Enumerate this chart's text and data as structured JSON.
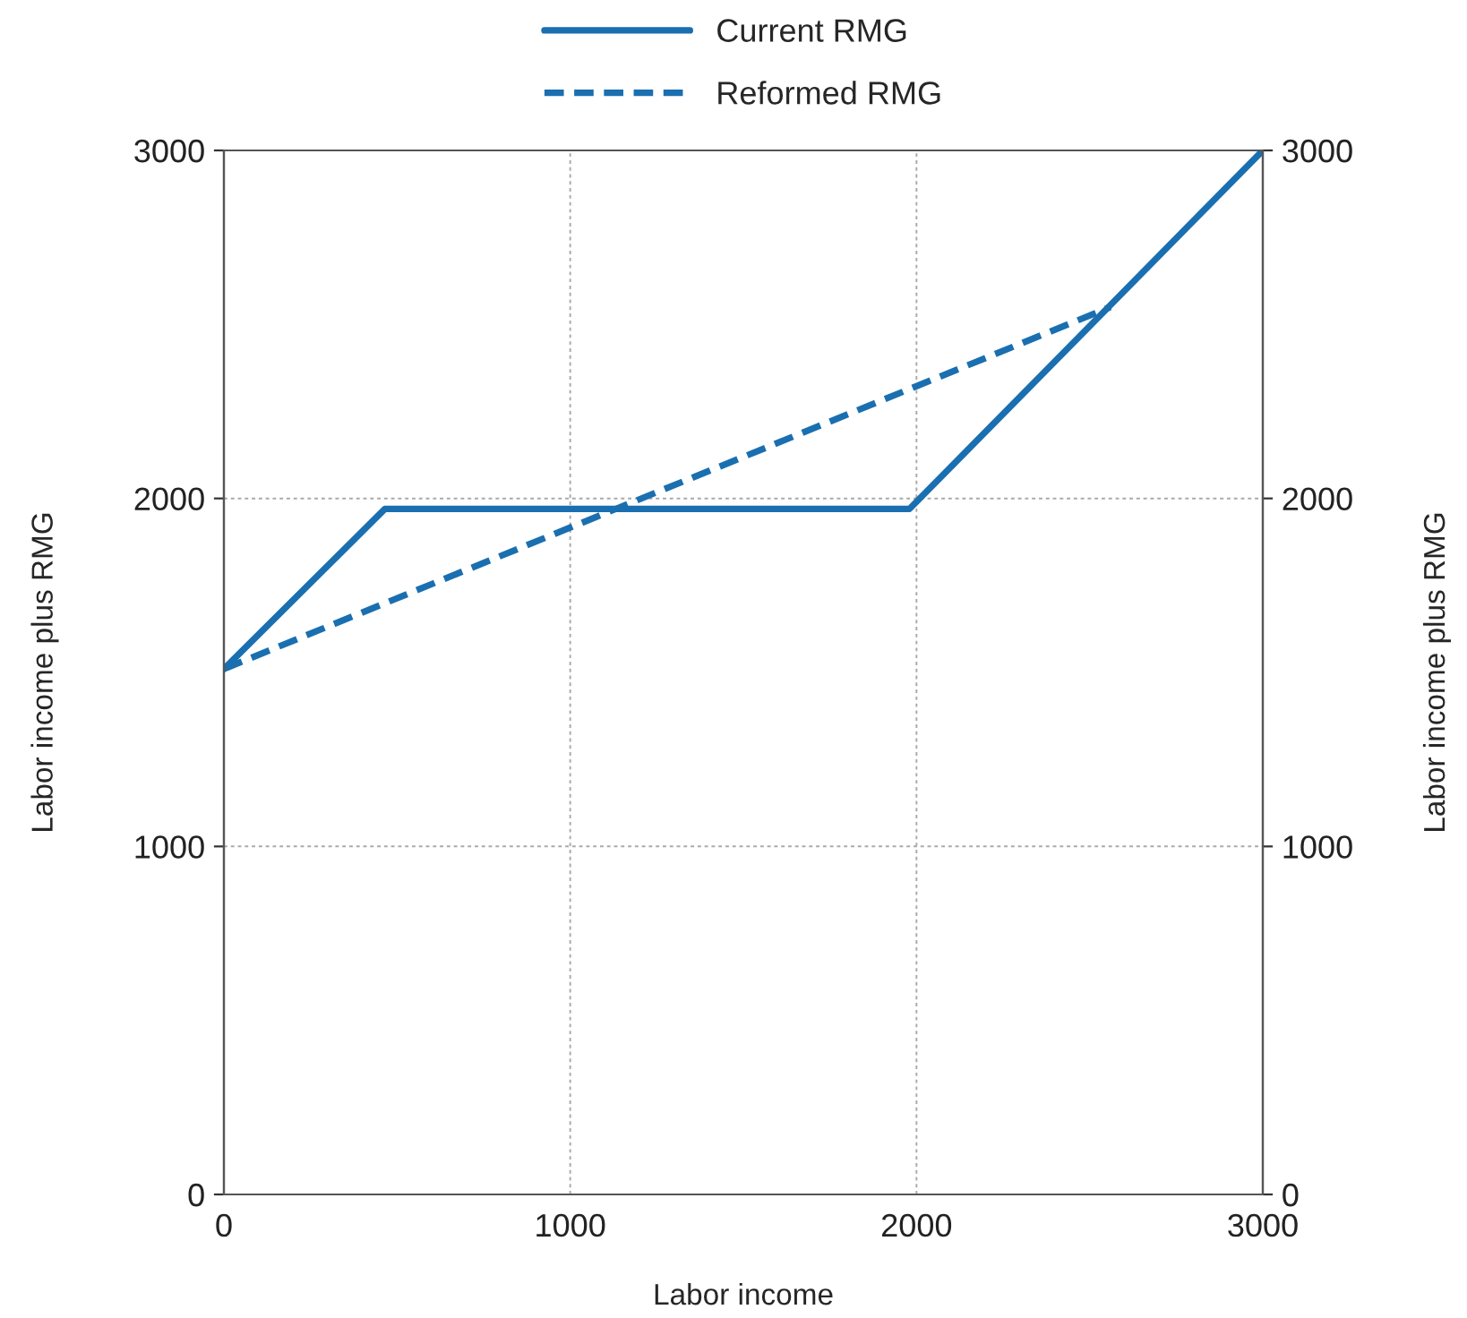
{
  "chart_data": {
    "type": "line",
    "xlabel": "Labor income",
    "ylabel": "Labor income plus RMG",
    "y2label": "Labor income plus RMG",
    "series": [
      {
        "name": "Current RMG",
        "color": "#1a6fb0",
        "line_style": "solid",
        "x": [
          0,
          465,
          1980,
          3000
        ],
        "values": [
          1510,
          1970,
          1970,
          3000
        ]
      },
      {
        "name": "Reformed RMG",
        "color": "#1a6fb0",
        "line_style": "dashed",
        "x": [
          0,
          2560
        ],
        "values": [
          1510,
          2550
        ]
      }
    ],
    "xlim": [
      0,
      3000
    ],
    "xticks": [
      0,
      1000,
      2000,
      3000
    ],
    "ylim": [
      0,
      3000
    ],
    "yticks": [
      0,
      1000,
      2000,
      3000
    ],
    "y2lim": [
      0,
      3000
    ],
    "y2ticks": [
      0,
      1000,
      2000,
      3000
    ],
    "grid": true,
    "legend": "top",
    "marker": "none"
  }
}
